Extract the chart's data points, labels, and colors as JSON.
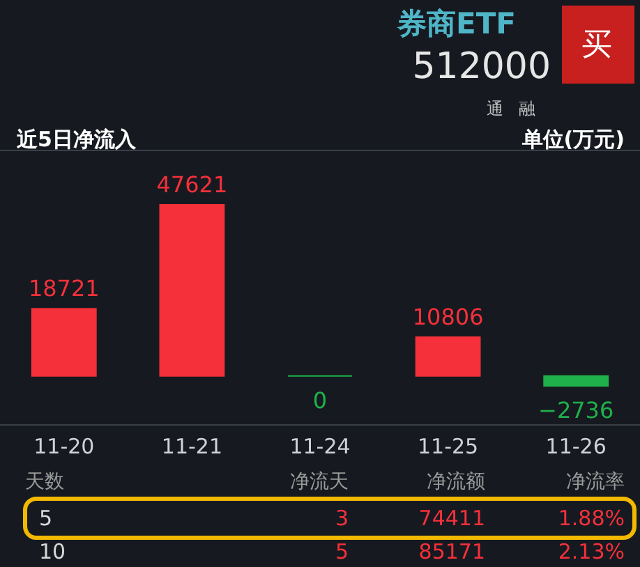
{
  "chart_data": {
    "type": "bar",
    "title": "近5日净流入",
    "categories": [
      "11-20",
      "11-21",
      "11-24",
      "11-25",
      "11-26"
    ],
    "values": [
      18721,
      47621,
      0,
      10806,
      -2736
    ],
    "colors": [
      "#f5303a",
      "#f5303a",
      "#1fb04b",
      "#f5303a",
      "#1fb04b"
    ],
    "tick_labels": "x",
    "data_labels": true,
    "grid": false,
    "annotations": [
      "单位(万元)",
      "券商ETF",
      "512000",
      "买",
      "通",
      "融",
      "天数",
      "净流天",
      "净流额",
      "净流率",
      "5",
      "3",
      "74411",
      "1.88%",
      "10",
      "5",
      "85171",
      "2.13%"
    ]
  }
}
